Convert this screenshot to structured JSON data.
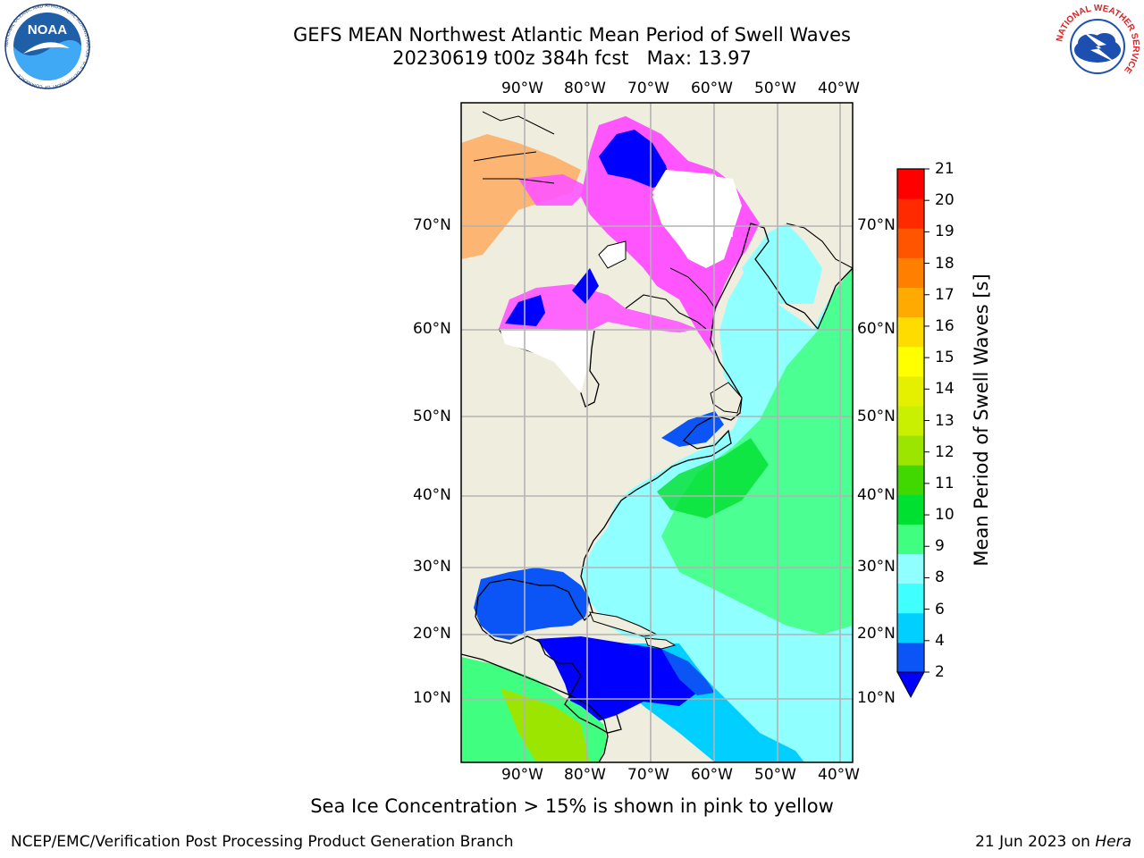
{
  "title": "GEFS MEAN Northwest Atlantic Mean Period of Swell Waves",
  "subtitle": "20230619 t00z 384h fcst   Max: 13.97",
  "lon_labels": [
    "90°W",
    "80°W",
    "70°W",
    "60°W",
    "50°W",
    "40°W"
  ],
  "lat_labels": [
    "70°N",
    "60°N",
    "50°N",
    "40°N",
    "30°N",
    "20°N",
    "10°N"
  ],
  "colorbar": {
    "label": "Mean Period of Swell Waves [s]",
    "ticks": [
      "2",
      "4",
      "6",
      "8",
      "9",
      "10",
      "11",
      "12",
      "13",
      "14",
      "15",
      "16",
      "17",
      "18",
      "19",
      "20",
      "21"
    ],
    "colors": [
      "#0b54f5",
      "#00cfff",
      "#40ffff",
      "#8fffff",
      "#40ff80",
      "#00e030",
      "#40d800",
      "#9be500",
      "#c8f000",
      "#e5f000",
      "#ffff00",
      "#ffdc00",
      "#ffaa00",
      "#ff8000",
      "#ff5500",
      "#ff2a00",
      "#ff0000"
    ],
    "under_color": "#0000ff"
  },
  "note": "Sea Ice Concentration > 15% is shown in pink to yellow",
  "credit": "NCEP/EMC/Verification Post Processing Product Generation Branch",
  "date_prefix": "21 Jun 2023 on ",
  "date_machine": "Hera",
  "logos": {
    "noaa_text": "NOAA",
    "noaa_ring": "NATIONAL OCEANIC AND ATMOSPHERIC ADMINISTRATION · U.S. DEPARTMENT OF COMMERCE",
    "nws_ring": "NATIONAL WEATHER SERVICE"
  }
}
